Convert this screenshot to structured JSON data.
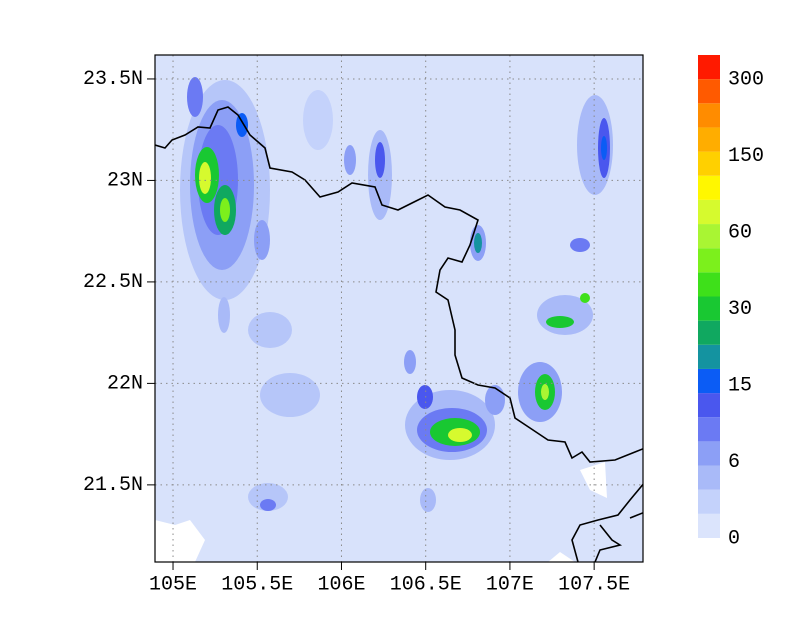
{
  "chart_data": {
    "type": "contour-map",
    "xlim": [
      104.893,
      107.79
    ],
    "ylim": [
      21.12,
      23.618
    ],
    "xticks": [
      {
        "value": 105,
        "label": "105E"
      },
      {
        "value": 105.5,
        "label": "105.5E"
      },
      {
        "value": 106,
        "label": "106E"
      },
      {
        "value": 106.5,
        "label": "106.5E"
      },
      {
        "value": 107,
        "label": "107E"
      },
      {
        "value": 107.5,
        "label": "107.5E"
      }
    ],
    "yticks": [
      {
        "value": 21.5,
        "label": "21.5N"
      },
      {
        "value": 22,
        "label": "22N"
      },
      {
        "value": 22.5,
        "label": "22.5N"
      },
      {
        "value": 23,
        "label": "23N"
      },
      {
        "value": 23.5,
        "label": "23.5N"
      }
    ],
    "grid": true,
    "colorbar": {
      "colors": [
        "#dbe4fc",
        "#c4d2fb",
        "#a9baf8",
        "#8c9ff6",
        "#6b7af3",
        "#4a57ee",
        "#0b5cf5",
        "#1493a0",
        "#10a860",
        "#19c832",
        "#3ee01a",
        "#7cf01c",
        "#a9f533",
        "#d6fa2e",
        "#fff700",
        "#ffd000",
        "#ffad00",
        "#ff8c00",
        "#ff5a00",
        "#ff1a00"
      ],
      "ticks": [
        0,
        6,
        15,
        30,
        60,
        150,
        300
      ]
    }
  }
}
